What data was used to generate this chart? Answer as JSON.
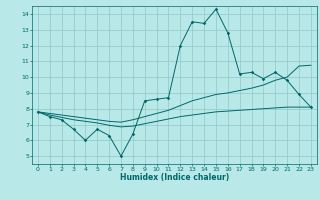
{
  "title": "",
  "xlabel": "Humidex (Indice chaleur)",
  "bg_color": "#b8e8e8",
  "grid_color": "#90c8c8",
  "line_color": "#006868",
  "xlim": [
    -0.5,
    23.5
  ],
  "ylim": [
    4.5,
    14.5
  ],
  "xticks": [
    0,
    1,
    2,
    3,
    4,
    5,
    6,
    7,
    8,
    9,
    10,
    11,
    12,
    13,
    14,
    15,
    16,
    17,
    18,
    19,
    20,
    21,
    22,
    23
  ],
  "yticks": [
    5,
    6,
    7,
    8,
    9,
    10,
    11,
    12,
    13,
    14
  ],
  "line1_x": [
    0,
    1,
    2,
    3,
    4,
    5,
    6,
    7,
    8,
    9,
    10,
    11,
    12,
    13,
    14,
    15,
    16,
    17,
    18,
    19,
    20,
    21,
    22,
    23
  ],
  "line1_y": [
    7.8,
    7.5,
    7.3,
    6.7,
    6.0,
    6.7,
    6.3,
    5.0,
    6.4,
    8.5,
    8.6,
    8.7,
    12.0,
    13.5,
    13.4,
    14.3,
    12.8,
    10.2,
    10.3,
    9.9,
    10.3,
    9.8,
    8.9,
    8.1
  ],
  "line2_x": [
    0,
    1,
    2,
    3,
    4,
    5,
    6,
    7,
    8,
    9,
    10,
    11,
    12,
    13,
    14,
    15,
    16,
    17,
    18,
    19,
    20,
    21,
    22,
    23
  ],
  "line2_y": [
    7.8,
    7.7,
    7.6,
    7.5,
    7.4,
    7.3,
    7.2,
    7.15,
    7.3,
    7.5,
    7.7,
    7.9,
    8.2,
    8.5,
    8.7,
    8.9,
    9.0,
    9.15,
    9.3,
    9.5,
    9.8,
    10.0,
    10.7,
    10.75
  ],
  "line3_x": [
    0,
    1,
    2,
    3,
    4,
    5,
    6,
    7,
    8,
    9,
    10,
    11,
    12,
    13,
    14,
    15,
    16,
    17,
    18,
    19,
    20,
    21,
    22,
    23
  ],
  "line3_y": [
    7.8,
    7.6,
    7.45,
    7.3,
    7.2,
    7.1,
    6.95,
    6.85,
    6.9,
    7.05,
    7.2,
    7.35,
    7.5,
    7.6,
    7.7,
    7.8,
    7.85,
    7.9,
    7.95,
    8.0,
    8.05,
    8.1,
    8.1,
    8.1
  ]
}
